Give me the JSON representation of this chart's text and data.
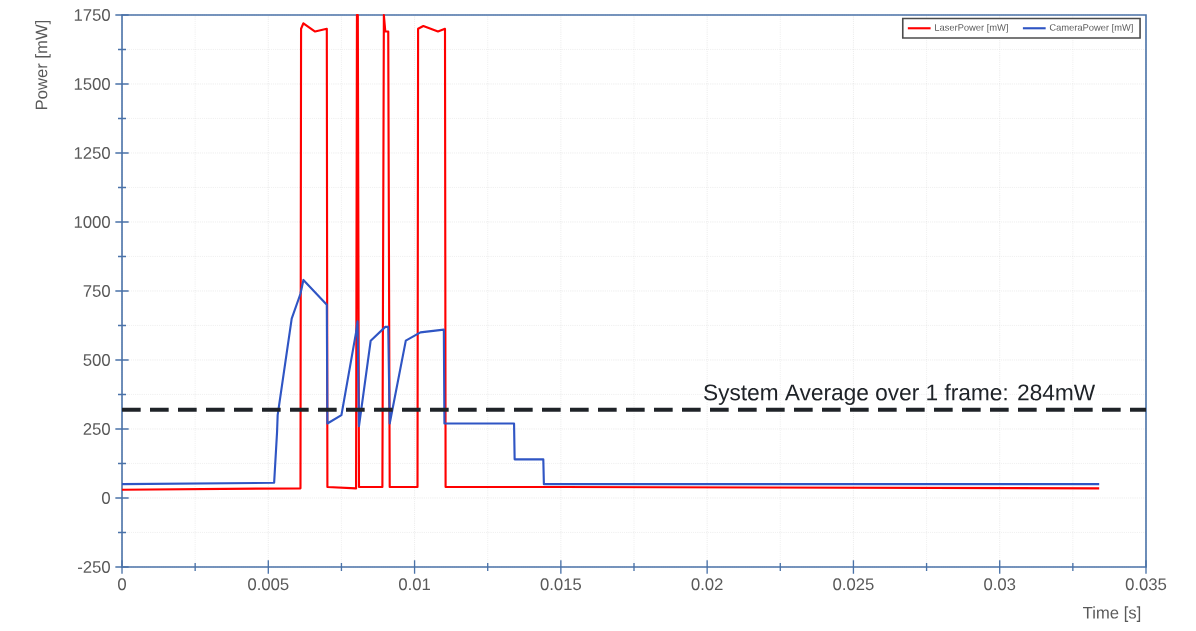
{
  "chart_data": {
    "type": "line",
    "xlabel": "Time [s]",
    "ylabel": "Power [mW]",
    "xlim": [
      0,
      0.035
    ],
    "ylim": [
      -250,
      1750
    ],
    "xticks": [
      0,
      0.005,
      0.01,
      0.015,
      0.02,
      0.025,
      0.03,
      0.035
    ],
    "yticks": [
      -250,
      0,
      250,
      500,
      750,
      1000,
      1250,
      1500,
      1750
    ],
    "grid": true,
    "legend": "top right",
    "marker": "none",
    "line_style": "solid",
    "series": [
      {
        "name": "LaserPower [mW]",
        "color": "#ff0000",
        "x": [
          0,
          0.0061,
          0.00612,
          0.0062,
          0.0066,
          0.007,
          0.00702,
          0.008,
          0.00803,
          0.00806,
          0.0081,
          0.0089,
          0.00895,
          0.009,
          0.0091,
          0.00915,
          0.0101,
          0.01012,
          0.0103,
          0.0108,
          0.01104,
          0.01106,
          0.015,
          0.0334
        ],
        "values": [
          30,
          35,
          1700,
          1720,
          1690,
          1700,
          40,
          35,
          1750,
          1750,
          40,
          40,
          1750,
          1690,
          1690,
          40,
          40,
          1700,
          1710,
          1690,
          1700,
          40,
          40,
          35
        ]
      },
      {
        "name": "CameraPower [mW]",
        "color": "#2f55c4",
        "x": [
          0,
          0.0052,
          0.0053,
          0.00532,
          0.0058,
          0.0061,
          0.0062,
          0.007,
          0.00702,
          0.0075,
          0.008,
          0.00805,
          0.0081,
          0.0085,
          0.009,
          0.0091,
          0.00915,
          0.0097,
          0.0102,
          0.011,
          0.01102,
          0.0134,
          0.01342,
          0.0144,
          0.01442,
          0.0334
        ],
        "values": [
          50,
          55,
          240,
          300,
          650,
          740,
          790,
          700,
          270,
          300,
          600,
          640,
          260,
          570,
          620,
          620,
          270,
          570,
          600,
          610,
          270,
          270,
          140,
          140,
          50,
          50
        ]
      }
    ],
    "ref_lines": [
      {
        "axis": "y",
        "value": 320,
        "color": "#1f2328",
        "line_style": "dashed"
      }
    ],
    "annotations": [
      "System Average over 1 frame: 284mW"
    ]
  }
}
